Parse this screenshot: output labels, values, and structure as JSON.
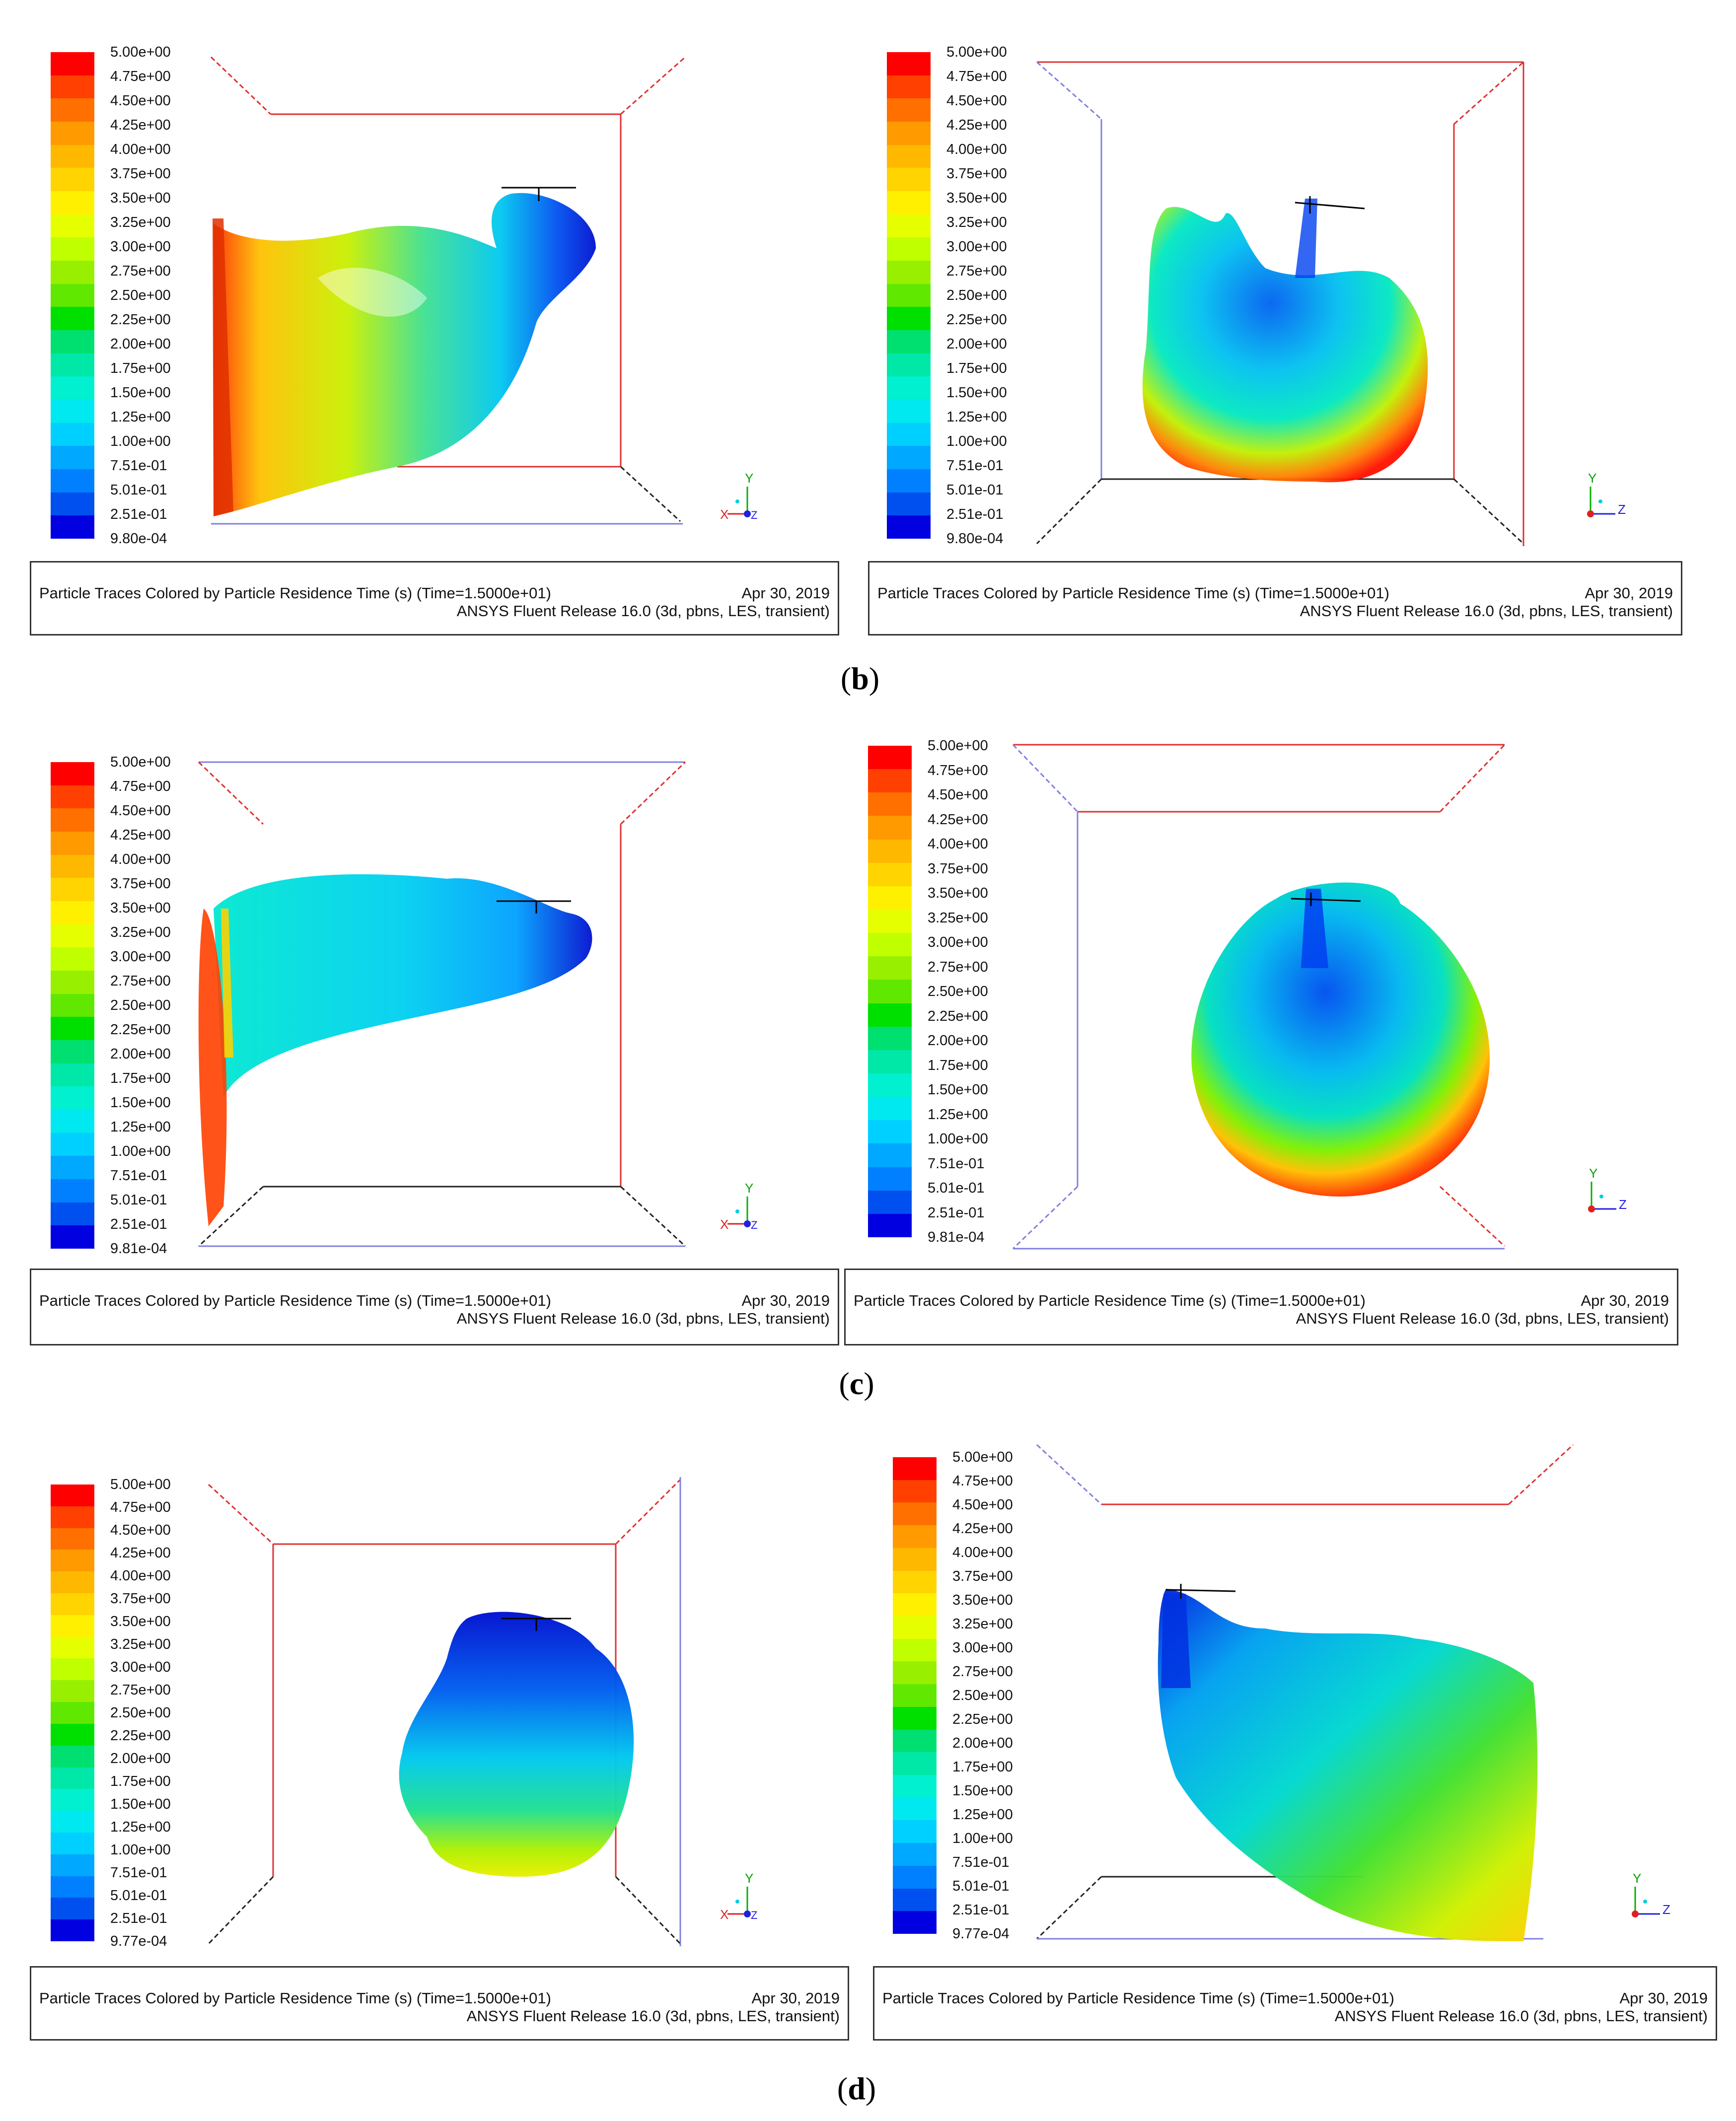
{
  "legend_ticks_a": [
    "5.00e+00",
    "4.75e+00",
    "4.50e+00",
    "4.25e+00",
    "4.00e+00",
    "3.75e+00",
    "3.50e+00",
    "3.25e+00",
    "3.00e+00",
    "2.75e+00",
    "2.50e+00",
    "2.25e+00",
    "2.00e+00",
    "1.75e+00",
    "1.50e+00",
    "1.25e+00",
    "1.00e+00",
    "7.51e-01",
    "5.01e-01",
    "2.51e-01",
    "9.80e-04"
  ],
  "legend_ticks_b": [
    "5.00e+00",
    "4.75e+00",
    "4.50e+00",
    "4.25e+00",
    "4.00e+00",
    "3.75e+00",
    "3.50e+00",
    "3.25e+00",
    "3.00e+00",
    "2.75e+00",
    "2.50e+00",
    "2.25e+00",
    "2.00e+00",
    "1.75e+00",
    "1.50e+00",
    "1.25e+00",
    "1.00e+00",
    "7.51e-01",
    "5.01e-01",
    "2.51e-01",
    "9.81e-04"
  ],
  "legend_ticks_c": [
    "5.00e+00",
    "4.75e+00",
    "4.50e+00",
    "4.25e+00",
    "4.00e+00",
    "3.75e+00",
    "3.50e+00",
    "3.25e+00",
    "3.00e+00",
    "2.75e+00",
    "2.50e+00",
    "2.25e+00",
    "2.00e+00",
    "1.75e+00",
    "1.50e+00",
    "1.25e+00",
    "1.00e+00",
    "7.51e-01",
    "5.01e-01",
    "2.51e-01",
    "9.77e-04"
  ],
  "colormap": [
    "#ff0000",
    "#ff4000",
    "#ff7000",
    "#ff9a00",
    "#ffb800",
    "#ffd400",
    "#fff000",
    "#e6ff00",
    "#c0ff00",
    "#98f000",
    "#60e800",
    "#00e000",
    "#00e070",
    "#00e8a8",
    "#00f0d0",
    "#00e8f0",
    "#00d0ff",
    "#00a8ff",
    "#0080ff",
    "#0050f0",
    "#0000e0"
  ],
  "caption": {
    "title": "Particle Traces Colored by Particle Residence Time (s)  (Time=1.5000e+01)",
    "date": "Apr 30, 2019",
    "version": "ANSYS Fluent Release 16.0 (3d, pbns, LES, transient)"
  },
  "axes": {
    "x": "X",
    "y": "Y",
    "z": "Z"
  },
  "sublabels": {
    "b": "b",
    "c": "c",
    "d": "d"
  }
}
